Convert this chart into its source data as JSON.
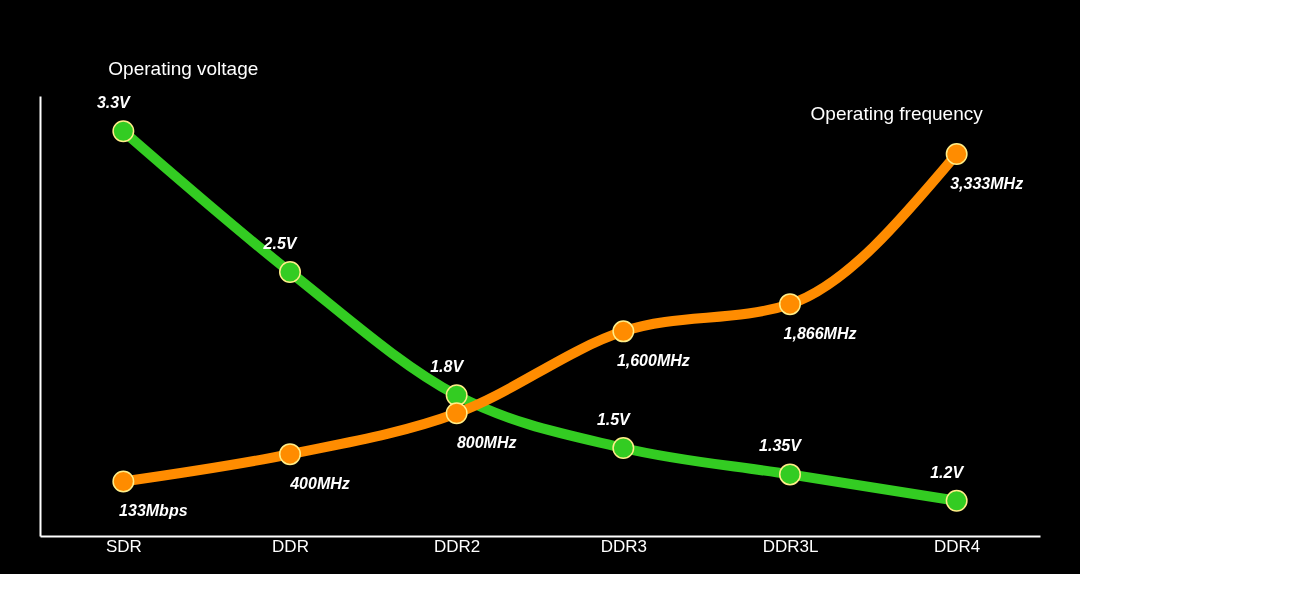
{
  "chart_data": {
    "type": "line",
    "categories": [
      "SDR",
      "DDR",
      "DDR2",
      "DDR3",
      "DDR3L",
      "DDR4"
    ],
    "series": [
      {
        "name": "Operating voltage",
        "color": "#33cc22",
        "axis": "y",
        "values": [
          3.3,
          2.5,
          1.8,
          1.5,
          1.35,
          1.2
        ],
        "value_labels": [
          "3.3V",
          "2.5V",
          "1.8V",
          "1.5V",
          "1.35V",
          "1.2V"
        ]
      },
      {
        "name": "Operating frequency",
        "color": "#ff8c00",
        "axis": "y2",
        "values": [
          133,
          400,
          800,
          1600,
          1866,
          3333
        ],
        "value_labels": [
          "133Mbps",
          "400MHz",
          "800MHz",
          "1,600MHz",
          "1,866MHz",
          "3,333MHz"
        ]
      }
    ],
    "ylim": [
      1,
      3.5
    ],
    "y2lim": [
      -400,
      3900
    ],
    "tick_labels": "x",
    "marker": "circle",
    "line_style": "solid",
    "legend": false,
    "grid": false
  }
}
